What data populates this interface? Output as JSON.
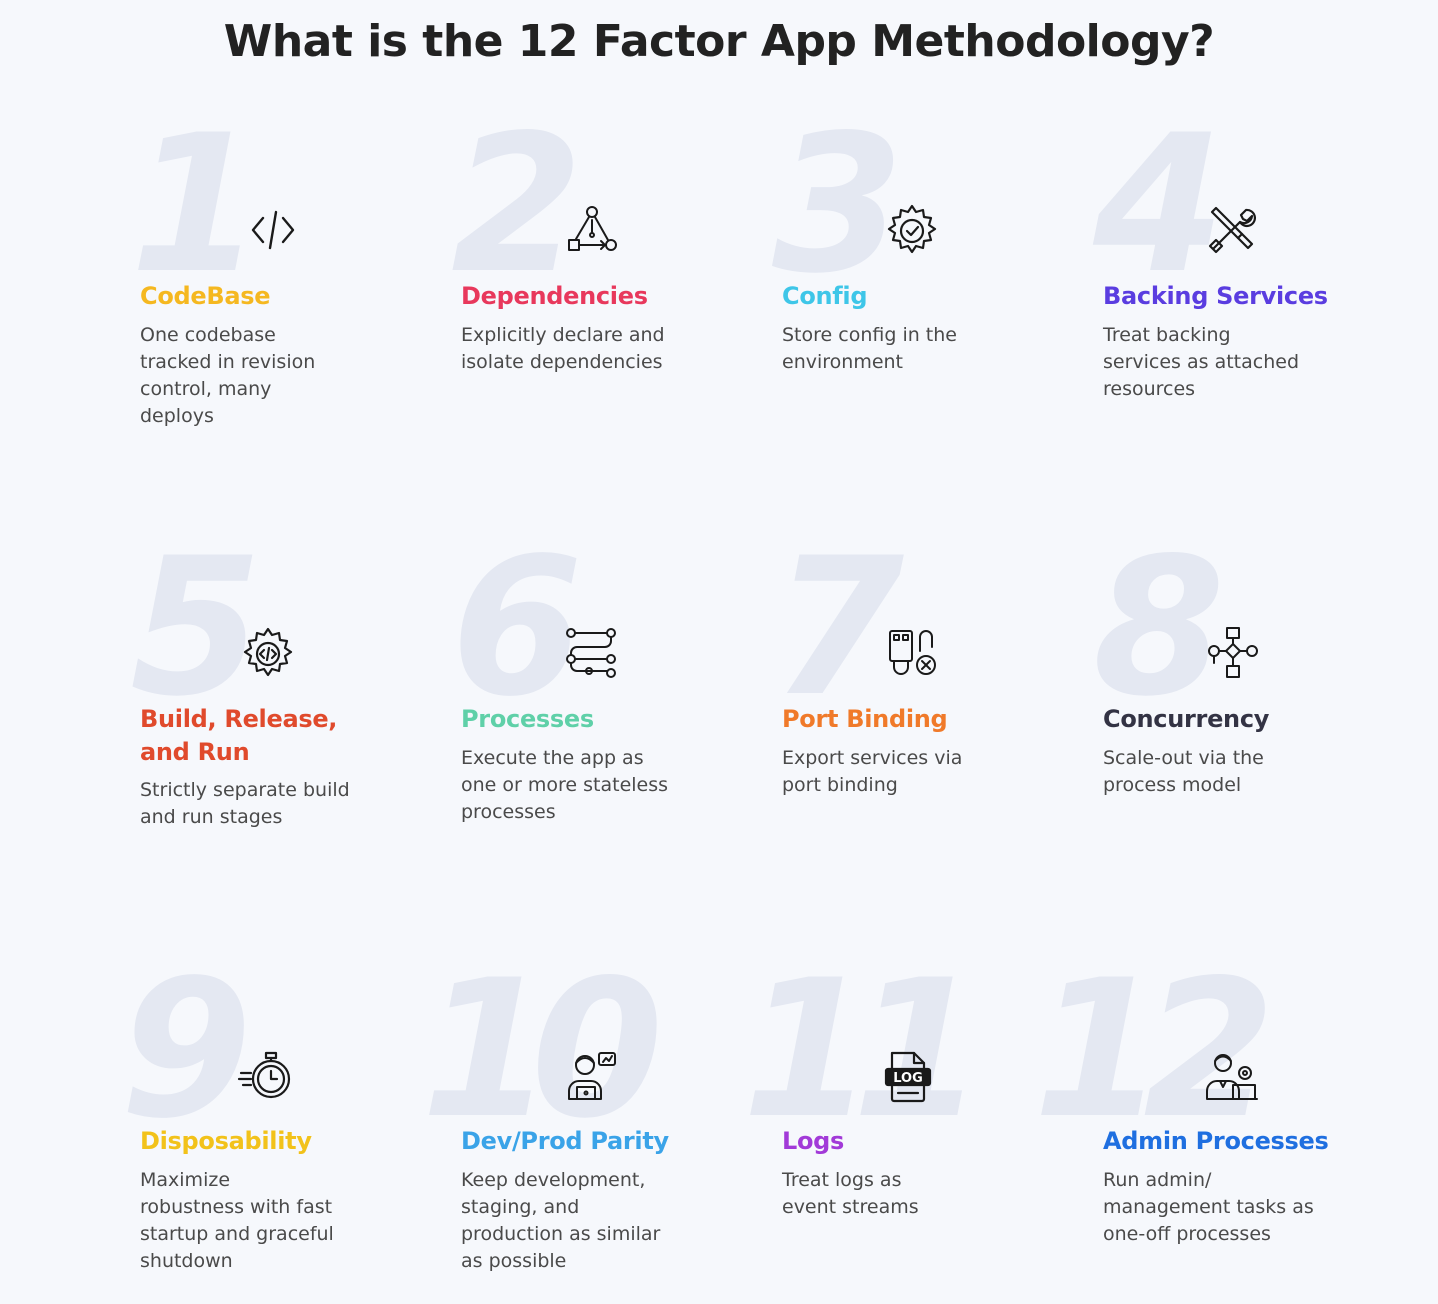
{
  "page": {
    "title": "What is the 12 Factor App Methodology?"
  },
  "factors": [
    {
      "number": "1",
      "title": "CodeBase",
      "description": "One codebase tracked in revision control, many deploys",
      "color": "#f5b820",
      "icon": "code-icon"
    },
    {
      "number": "2",
      "title": "Dependencies",
      "description": "Explicitly declare and isolate dependencies",
      "color": "#e8385c",
      "icon": "dependency-graph-icon"
    },
    {
      "number": "3",
      "title": "Config",
      "description": "Store config in the environment",
      "color": "#3ec6e8",
      "icon": "gear-check-icon"
    },
    {
      "number": "4",
      "title": "Backing Services",
      "description": "Treat backing services as attached resources",
      "color": "#5a3de0",
      "icon": "tools-icon"
    },
    {
      "number": "5",
      "title": "Build, Release, and Run",
      "description": "Strictly separate build and run stages",
      "color": "#e04a2c",
      "icon": "gear-code-icon"
    },
    {
      "number": "6",
      "title": "Processes",
      "description": "Execute the app as one or more stateless processes",
      "color": "#5fd0a8",
      "icon": "process-flow-icon"
    },
    {
      "number": "7",
      "title": "Port Binding",
      "description": "Export services via port binding",
      "color": "#f07a2a",
      "icon": "port-plug-icon"
    },
    {
      "number": "8",
      "title": "Concurrency",
      "description": "Scale-out via the process model",
      "color": "#333344",
      "icon": "flowchart-icon"
    },
    {
      "number": "9",
      "title": "Disposability",
      "description": "Maximize robustness with fast startup and graceful shutdown",
      "color": "#f2c21a",
      "icon": "stopwatch-icon"
    },
    {
      "number": "10",
      "title": "Dev/Prod Parity",
      "description": "Keep development, staging, and production as similar as possible",
      "color": "#3aa3e8",
      "icon": "developer-icon"
    },
    {
      "number": "11",
      "title": "Logs",
      "description": "Treat logs as event streams",
      "color": "#a23ad8",
      "icon": "log-file-icon"
    },
    {
      "number": "12",
      "title": "Admin Processes",
      "description": "Run admin/ management tasks as one-off processes",
      "color": "#1f6fe0",
      "icon": "admin-user-icon"
    }
  ]
}
